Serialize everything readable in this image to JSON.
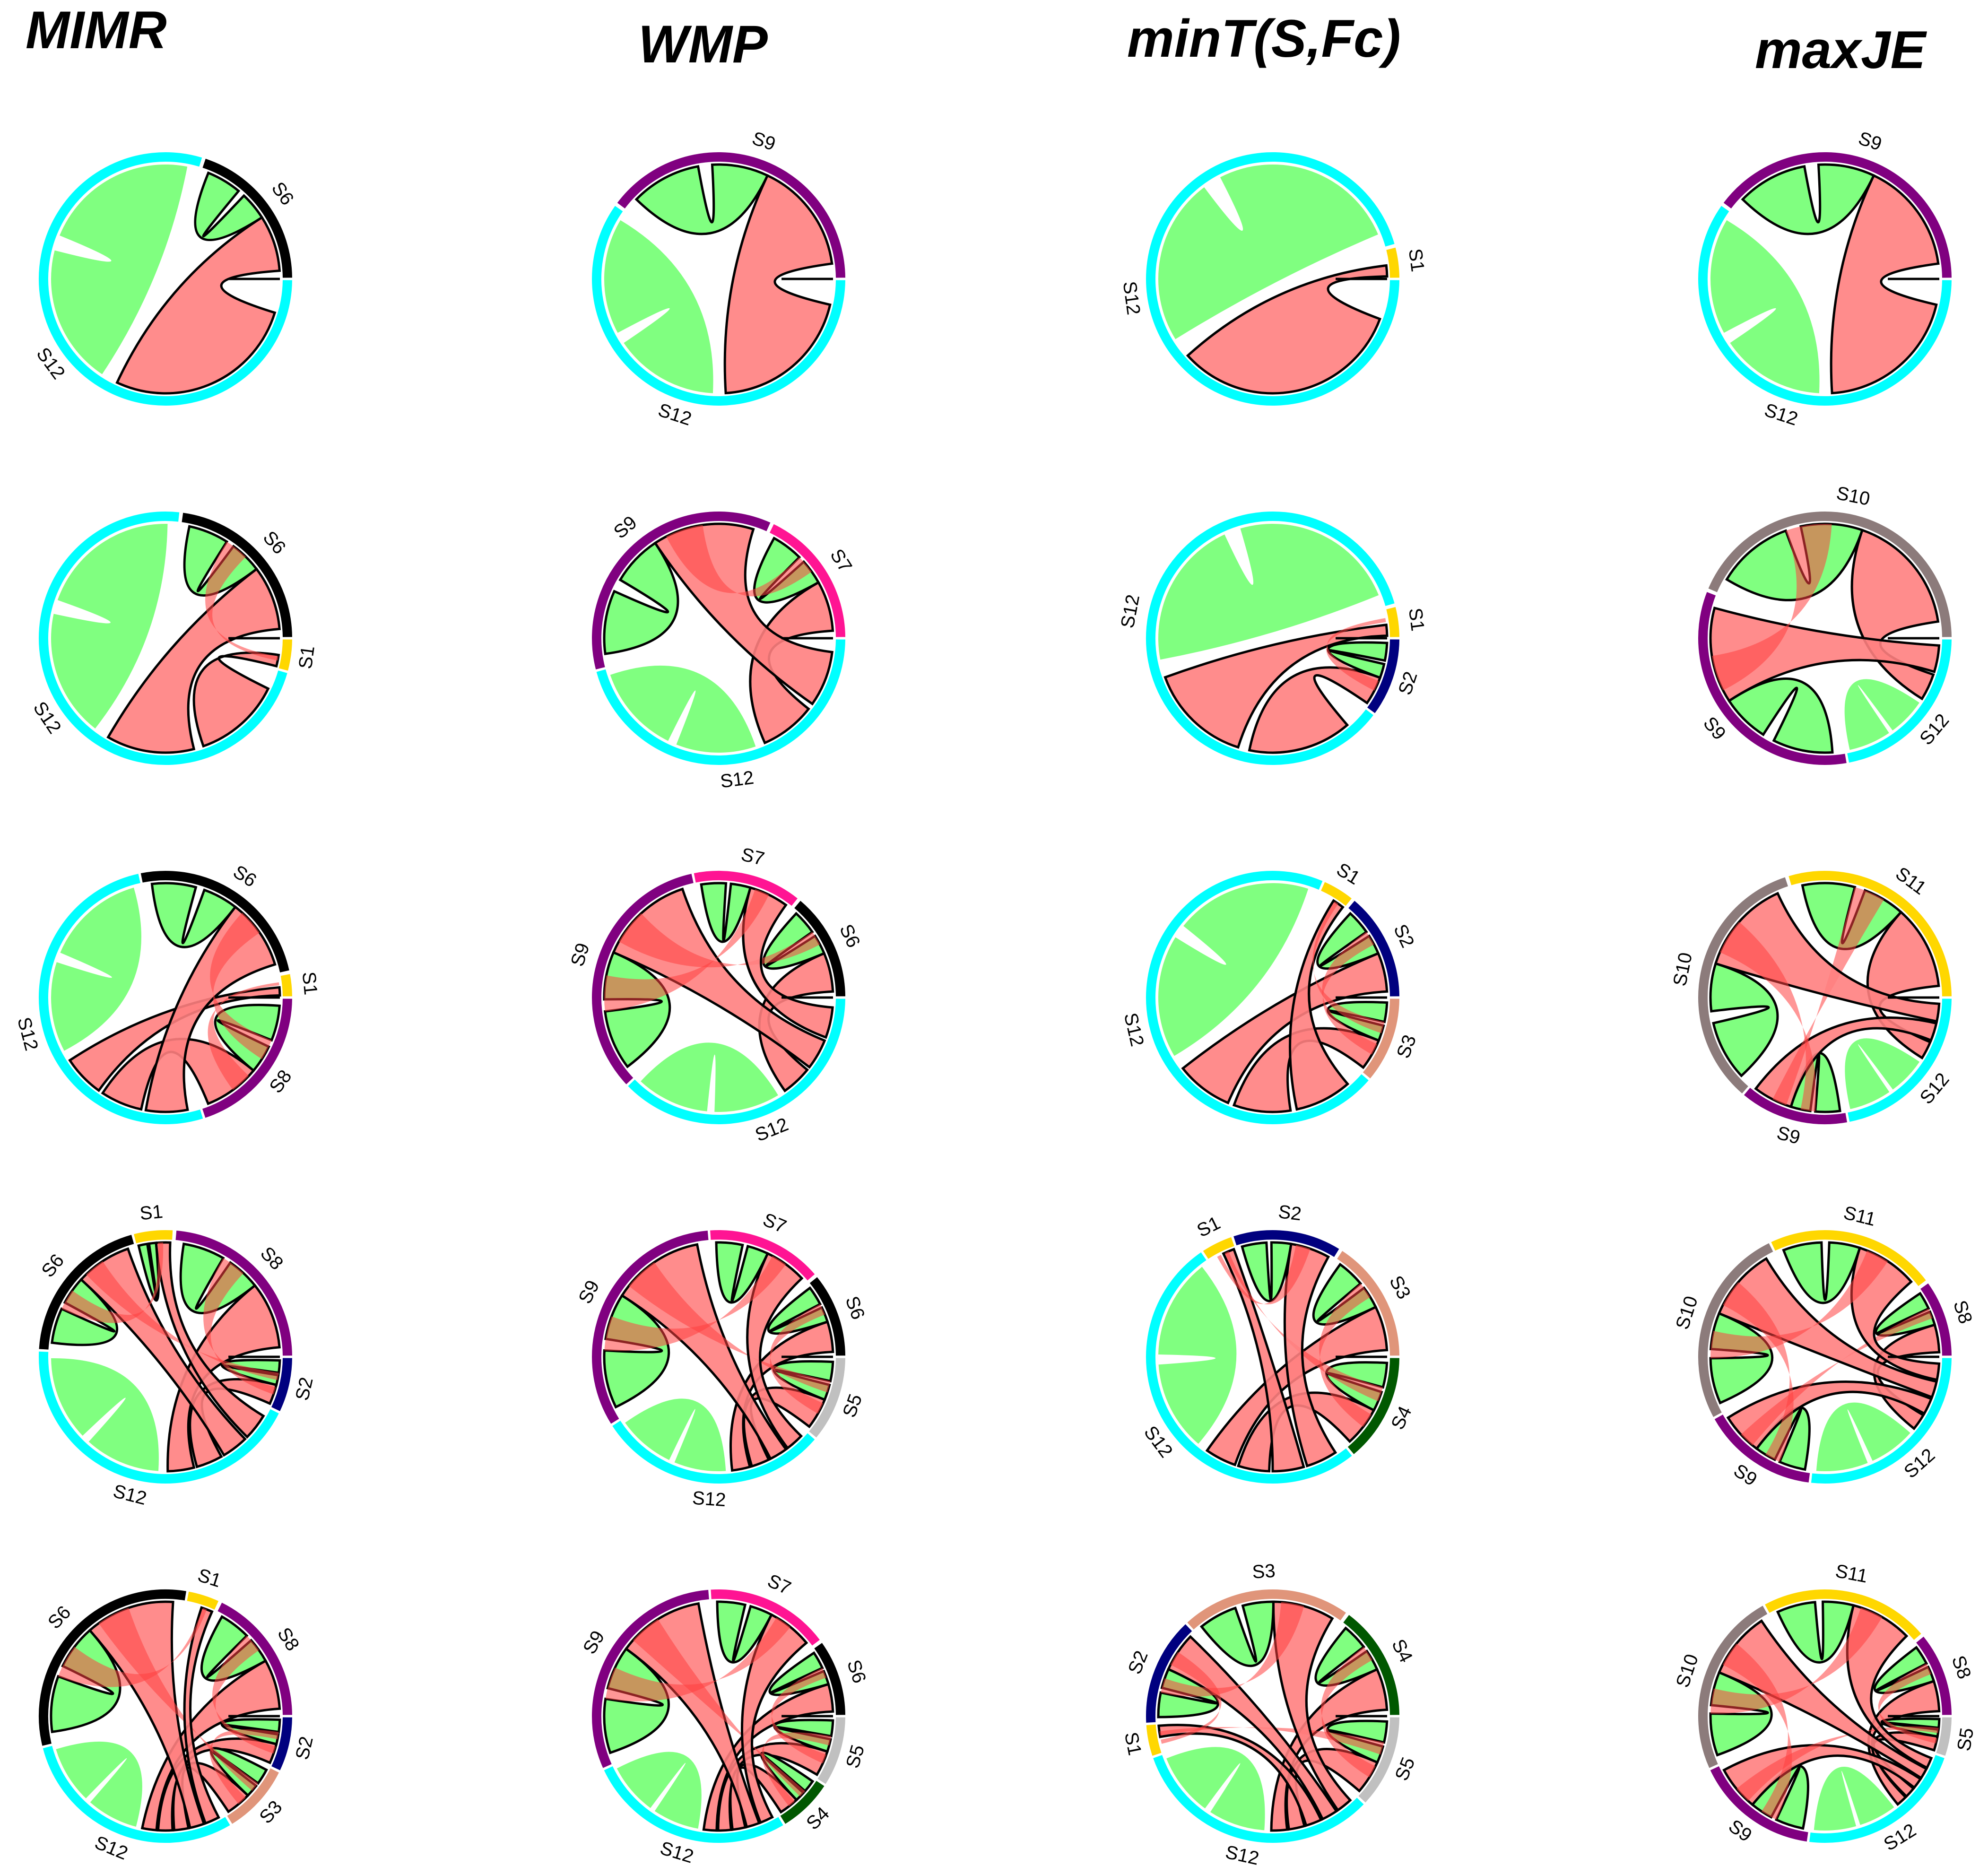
{
  "columns": [
    "MIMR",
    "WMP",
    "minT(S,Fc)",
    "maxJE"
  ],
  "colors": {
    "S1": "#FFD700",
    "S2": "#00007F",
    "S3": "#E0957A",
    "S4": "#005800",
    "S5": "#C0C0C0",
    "S6": "#000000",
    "S7": "#FF1493",
    "S8": "#800080",
    "S9": "#800080",
    "S10": "#8C7B7B",
    "S11": "#FFD700",
    "S12": "#00FFFF",
    "chord_green": "#80FF80",
    "chord_red": "#FF8080",
    "chord_red_dark": "#FF4040"
  },
  "panels": [
    [
      {
        "sectors": [
          {
            "name": "S6",
            "w": 20
          },
          {
            "name": "S12",
            "w": 80
          }
        ],
        "labels": [
          {
            "text": "S6",
            "sector": "S6"
          },
          {
            "text": "S12",
            "sector": "S12"
          }
        ]
      },
      {
        "sectors": [
          {
            "name": "S6",
            "w": 23
          },
          {
            "name": "S1",
            "w": 4
          },
          {
            "name": "S12",
            "w": 73
          }
        ],
        "labels": [
          {
            "text": "S6",
            "sector": "S6"
          },
          {
            "text": "S1",
            "sector": "S1"
          },
          {
            "text": "S12",
            "sector": "S12"
          }
        ]
      },
      {
        "sectors": [
          {
            "name": "S1",
            "w": 3
          },
          {
            "name": "S8",
            "w": 20
          },
          {
            "name": "S12",
            "w": 52
          },
          {
            "name": "S6",
            "w": 25
          }
        ],
        "labels": [
          {
            "text": "S1",
            "sector": "S1"
          },
          {
            "text": "S8",
            "sector": "S8"
          },
          {
            "text": "S12",
            "sector": "S12"
          },
          {
            "text": "S6",
            "sector": "S6"
          }
        ]
      },
      {
        "sectors": [
          {
            "name": "S8",
            "w": 24
          },
          {
            "name": "S2",
            "w": 7
          },
          {
            "name": "S12",
            "w": 44
          },
          {
            "name": "S6",
            "w": 20
          },
          {
            "name": "S1",
            "w": 5
          }
        ],
        "labels": [
          {
            "text": "S8",
            "sector": "S8"
          },
          {
            "text": "S2",
            "sector": "S2"
          },
          {
            "text": "S12",
            "sector": "S12"
          },
          {
            "text": "S6",
            "sector": "S6"
          },
          {
            "text": "S1",
            "sector": "S1"
          }
        ]
      },
      {
        "sectors": [
          {
            "name": "S8",
            "w": 18
          },
          {
            "name": "S2",
            "w": 7
          },
          {
            "name": "S3",
            "w": 9
          },
          {
            "name": "S12",
            "w": 30
          },
          {
            "name": "S6",
            "w": 32
          },
          {
            "name": "S1",
            "w": 4
          }
        ],
        "labels": [
          {
            "text": "S8",
            "sector": "S8"
          },
          {
            "text": "S2",
            "sector": "S2"
          },
          {
            "text": "S3",
            "sector": "S3"
          },
          {
            "text": "S12",
            "sector": "S12"
          },
          {
            "text": "S6",
            "sector": "S6"
          },
          {
            "text": "S1",
            "sector": "S1"
          }
        ]
      }
    ],
    [
      {
        "sectors": [
          {
            "name": "S9",
            "w": 40
          },
          {
            "name": "S12",
            "w": 60
          }
        ],
        "labels": [
          {
            "text": "S9",
            "sector": "S9"
          },
          {
            "text": "S12",
            "sector": "S12"
          }
        ]
      },
      {
        "sectors": [
          {
            "name": "S7",
            "w": 18
          },
          {
            "name": "S12",
            "w": 46
          },
          {
            "name": "S9",
            "w": 36
          }
        ],
        "labels": [
          {
            "text": "S7",
            "sector": "S7"
          },
          {
            "text": "S12",
            "sector": "S12"
          },
          {
            "text": "S9",
            "sector": "S9"
          }
        ]
      },
      {
        "sectors": [
          {
            "name": "S6",
            "w": 14
          },
          {
            "name": "S12",
            "w": 38
          },
          {
            "name": "S9",
            "w": 34
          },
          {
            "name": "S7",
            "w": 14
          }
        ],
        "labels": [
          {
            "text": "S6",
            "sector": "S6"
          },
          {
            "text": "S12",
            "sector": "S12"
          },
          {
            "text": "S9",
            "sector": "S9"
          },
          {
            "text": "S7",
            "sector": "S7"
          }
        ]
      },
      {
        "sectors": [
          {
            "name": "S6",
            "w": 11
          },
          {
            "name": "S5",
            "w": 11
          },
          {
            "name": "S12",
            "w": 30
          },
          {
            "name": "S9",
            "w": 33
          },
          {
            "name": "S7",
            "w": 15
          }
        ],
        "labels": [
          {
            "text": "S6",
            "sector": "S6"
          },
          {
            "text": "S5",
            "sector": "S5"
          },
          {
            "text": "S12",
            "sector": "S12"
          },
          {
            "text": "S9",
            "sector": "S9"
          },
          {
            "text": "S7",
            "sector": "S7"
          }
        ]
      },
      {
        "sectors": [
          {
            "name": "S6",
            "w": 10
          },
          {
            "name": "S5",
            "w": 9
          },
          {
            "name": "S4",
            "w": 7
          },
          {
            "name": "S12",
            "w": 27
          },
          {
            "name": "S9",
            "w": 31
          },
          {
            "name": "S7",
            "w": 16
          }
        ],
        "labels": [
          {
            "text": "S6",
            "sector": "S6"
          },
          {
            "text": "S5",
            "sector": "S5"
          },
          {
            "text": "S4",
            "sector": "S4"
          },
          {
            "text": "S12",
            "sector": "S12"
          },
          {
            "text": "S9",
            "sector": "S9"
          },
          {
            "text": "S7",
            "sector": "S7"
          }
        ]
      }
    ],
    [
      {
        "sectors": [
          {
            "name": "S1",
            "w": 4
          },
          {
            "name": "S12",
            "w": 96
          }
        ],
        "labels": [
          {
            "text": "S1",
            "sector": "S1"
          },
          {
            "text": "S12",
            "sector": "S12"
          }
        ]
      },
      {
        "sectors": [
          {
            "name": "S1",
            "w": 4
          },
          {
            "name": "S2",
            "w": 10
          },
          {
            "name": "S12",
            "w": 86
          }
        ],
        "labels": [
          {
            "text": "S1",
            "sector": "S1"
          },
          {
            "text": "S2",
            "sector": "S2"
          },
          {
            "text": "S12",
            "sector": "S12"
          }
        ]
      },
      {
        "sectors": [
          {
            "name": "S2",
            "w": 14
          },
          {
            "name": "S3",
            "w": 11
          },
          {
            "name": "S12",
            "w": 71
          },
          {
            "name": "S1",
            "w": 4
          }
        ],
        "labels": [
          {
            "text": "S2",
            "sector": "S2"
          },
          {
            "text": "S3",
            "sector": "S3"
          },
          {
            "text": "S12",
            "sector": "S12"
          },
          {
            "text": "S1",
            "sector": "S1"
          }
        ]
      },
      {
        "sectors": [
          {
            "name": "S3",
            "w": 16
          },
          {
            "name": "S4",
            "w": 14
          },
          {
            "name": "S12",
            "w": 52
          },
          {
            "name": "S1",
            "w": 4
          },
          {
            "name": "S2",
            "w": 14
          }
        ],
        "labels": [
          {
            "text": "S3",
            "sector": "S3"
          },
          {
            "text": "S4",
            "sector": "S4"
          },
          {
            "text": "S12",
            "sector": "S12"
          },
          {
            "text": "S1",
            "sector": "S1"
          },
          {
            "text": "S2",
            "sector": "S2"
          }
        ]
      },
      {
        "sectors": [
          {
            "name": "S4",
            "w": 15
          },
          {
            "name": "S5",
            "w": 12
          },
          {
            "name": "S12",
            "w": 33
          },
          {
            "name": "S1",
            "w": 4
          },
          {
            "name": "S2",
            "w": 14
          },
          {
            "name": "S3",
            "w": 22
          }
        ],
        "labels": [
          {
            "text": "S4",
            "sector": "S4"
          },
          {
            "text": "S5",
            "sector": "S5"
          },
          {
            "text": "S12",
            "sector": "S12"
          },
          {
            "text": "S1",
            "sector": "S1"
          },
          {
            "text": "S2",
            "sector": "S2"
          },
          {
            "text": "S3",
            "sector": "S3"
          }
        ]
      }
    ],
    [
      {
        "sectors": [
          {
            "name": "S9",
            "w": 40
          },
          {
            "name": "S12",
            "w": 60
          }
        ],
        "labels": [
          {
            "text": "S9",
            "sector": "S9"
          },
          {
            "text": "S12",
            "sector": "S12"
          }
        ]
      },
      {
        "sectors": [
          {
            "name": "S10",
            "w": 44
          },
          {
            "name": "S12",
            "w": 22
          },
          {
            "name": "S9",
            "w": 34
          }
        ],
        "labels": [
          {
            "text": "S10",
            "sector": "S10"
          },
          {
            "text": "S12",
            "sector": "S12"
          },
          {
            "text": "S9",
            "sector": "S9"
          }
        ]
      },
      {
        "sectors": [
          {
            "name": "S11",
            "w": 30
          },
          {
            "name": "S12",
            "w": 22
          },
          {
            "name": "S9",
            "w": 14
          },
          {
            "name": "S10",
            "w": 34
          }
        ],
        "labels": [
          {
            "text": "S11",
            "sector": "S11"
          },
          {
            "text": "S12",
            "sector": "S12"
          },
          {
            "text": "S9",
            "sector": "S9"
          },
          {
            "text": "S10",
            "sector": "S10"
          }
        ]
      },
      {
        "sectors": [
          {
            "name": "S8",
            "w": 10
          },
          {
            "name": "S12",
            "w": 27
          },
          {
            "name": "S9",
            "w": 15
          },
          {
            "name": "S10",
            "w": 26
          },
          {
            "name": "S11",
            "w": 22
          }
        ],
        "labels": [
          {
            "text": "S8",
            "sector": "S8"
          },
          {
            "text": "S12",
            "sector": "S12"
          },
          {
            "text": "S9",
            "sector": "S9"
          },
          {
            "text": "S10",
            "sector": "S10"
          },
          {
            "text": "S11",
            "sector": "S11"
          }
        ]
      },
      {
        "sectors": [
          {
            "name": "S8",
            "w": 11
          },
          {
            "name": "S5",
            "w": 5
          },
          {
            "name": "S12",
            "w": 22
          },
          {
            "name": "S9",
            "w": 16
          },
          {
            "name": "S10",
            "w": 24
          },
          {
            "name": "S11",
            "w": 22
          }
        ],
        "labels": [
          {
            "text": "S8",
            "sector": "S8"
          },
          {
            "text": "S5",
            "sector": "S5"
          },
          {
            "text": "S12",
            "sector": "S12"
          },
          {
            "text": "S9",
            "sector": "S9"
          },
          {
            "text": "S10",
            "sector": "S10"
          },
          {
            "text": "S11",
            "sector": "S11"
          }
        ]
      }
    ]
  ]
}
